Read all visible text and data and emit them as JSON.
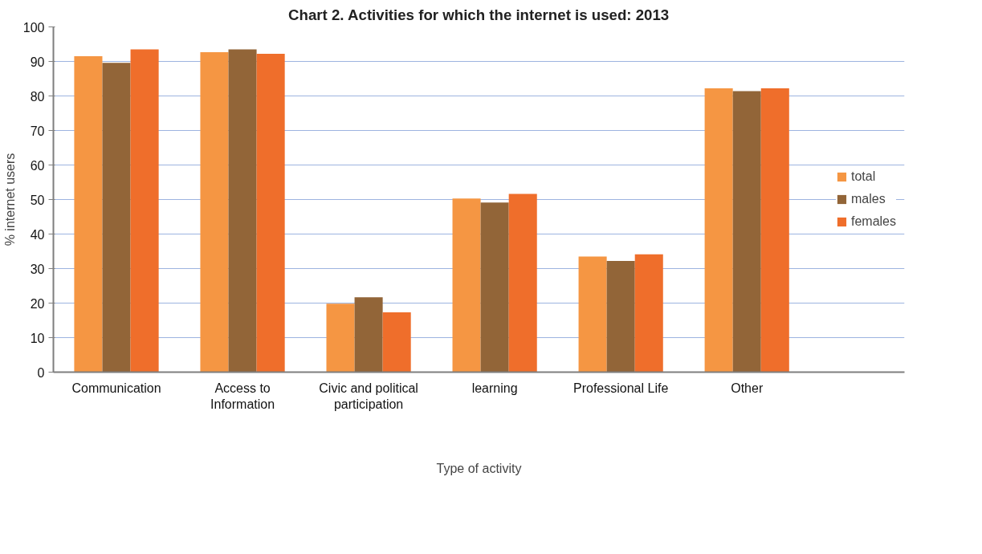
{
  "chart_data": {
    "type": "bar",
    "title": "Chart 2. Activities for which the internet is used: 2013",
    "xlabel": "Type of activity",
    "ylabel": "% internet users",
    "categories": [
      "Communication",
      "Access to\nInformation",
      "Civic and political\nparticipation",
      "learning",
      "Professional Life",
      "Other"
    ],
    "series": [
      {
        "name": "total",
        "color": "#f59643",
        "values": [
          91.5,
          92.7,
          19.8,
          50.3,
          33.5,
          82.2
        ]
      },
      {
        "name": "males",
        "color": "#926538",
        "values": [
          89.6,
          93.5,
          21.7,
          49.1,
          32.2,
          81.4
        ]
      },
      {
        "name": "females",
        "color": "#ef6e2b",
        "values": [
          93.5,
          92.2,
          17.3,
          51.6,
          34.1,
          82.2
        ]
      }
    ],
    "ylim": [
      0,
      100
    ],
    "yticks": [
      0,
      10,
      20,
      30,
      40,
      50,
      60,
      70,
      80,
      90,
      100
    ],
    "grid": "y",
    "legend": "right"
  }
}
